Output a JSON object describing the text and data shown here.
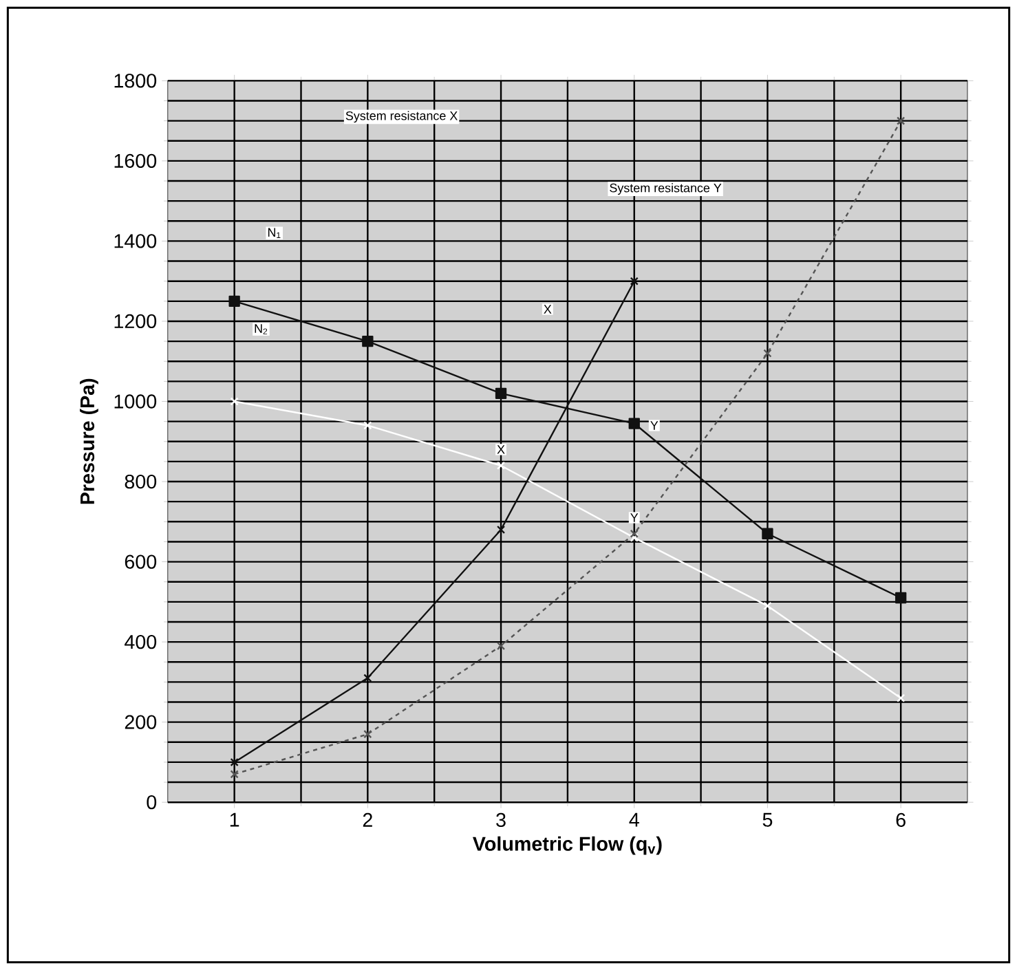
{
  "chart_data": {
    "type": "line",
    "xlabel": "Volumetric Flow (q$_{v}$)",
    "ylabel": "Pressure (Pa)",
    "x": [
      1,
      2,
      3,
      4,
      5,
      6
    ],
    "xlim": [
      0.5,
      6.5
    ],
    "xticks": [
      1,
      2,
      3,
      4,
      5,
      6
    ],
    "ylim": [
      0,
      1800
    ],
    "yticks": [
      0,
      200,
      400,
      600,
      800,
      1000,
      1200,
      1400,
      1600,
      1800
    ],
    "grid": true,
    "series": [
      {
        "color": "#111111",
        "marker": "square",
        "line_style": "solid",
        "values": [
          1250,
          1150,
          1020,
          945,
          670,
          510
        ]
      },
      {
        "color": "#ffffff",
        "marker": "cross",
        "line_style": "solid",
        "values": [
          1000,
          940,
          840,
          660,
          490,
          260
        ]
      },
      {
        "color": "#111111",
        "marker": "cross",
        "line_style": "solid",
        "x": [
          1,
          2,
          3,
          4
        ],
        "values": [
          100,
          310,
          680,
          1300
        ]
      },
      {
        "color": "#555555",
        "marker": "cross",
        "line_style": "dashed",
        "values": [
          70,
          170,
          390,
          670,
          1120,
          1700
        ]
      }
    ],
    "annotations": [
      {
        "text": "N$_{1}$",
        "x": 1.3,
        "y": 1420
      },
      {
        "text": "N$_{2}$",
        "x": 1.2,
        "y": 1180
      },
      "System resistance X",
      "System resistance Y",
      {
        "text": "X",
        "x": 3.0,
        "y": 880
      },
      {
        "text": "Y",
        "x": 4.15,
        "y": 940
      },
      {
        "text": "X",
        "x": 3.35,
        "y": 1230
      },
      {
        "text": "Y",
        "x": 4.0,
        "y": 710
      }
    ]
  }
}
